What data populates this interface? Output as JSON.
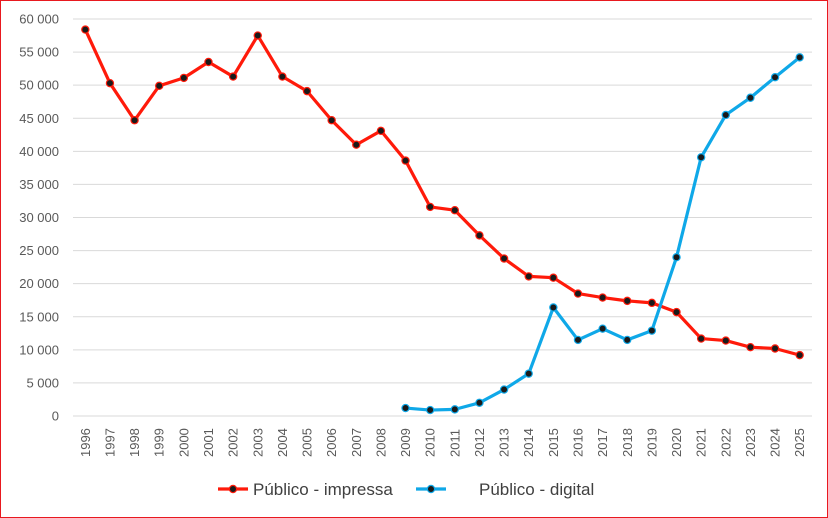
{
  "chart_data": {
    "type": "line",
    "title": "",
    "xlabel": "",
    "ylabel": "",
    "ylim": [
      0,
      60000
    ],
    "yticks": [
      0,
      5000,
      10000,
      15000,
      20000,
      25000,
      30000,
      35000,
      40000,
      45000,
      50000,
      55000,
      60000
    ],
    "ytick_labels": [
      "0",
      "5 000",
      "10 000",
      "15 000",
      "20 000",
      "25 000",
      "30 000",
      "35 000",
      "40 000",
      "45 000",
      "50 000",
      "55 000",
      "60 000"
    ],
    "grid": "horizontal",
    "legend_position": "bottom",
    "categories": [
      "1996",
      "1997",
      "1998",
      "1999",
      "2000",
      "2001",
      "2002",
      "2003",
      "2004",
      "2005",
      "2006",
      "2007",
      "2008",
      "2009",
      "2010",
      "2011",
      "2012",
      "2013",
      "2014",
      "2015",
      "2016",
      "2017",
      "2018",
      "2019",
      "2020",
      "2021",
      "2022",
      "2023",
      "2024",
      "2025"
    ],
    "series": [
      {
        "name": "Público - impressa",
        "color": "#ff1a0a",
        "values": [
          58400,
          50300,
          44700,
          49900,
          51100,
          53500,
          51300,
          57500,
          51300,
          49100,
          44700,
          41000,
          43100,
          38600,
          31600,
          31100,
          27300,
          23800,
          21100,
          20900,
          18500,
          17900,
          17400,
          17100,
          15700,
          11700,
          11400,
          10400,
          10200,
          9200
        ]
      },
      {
        "name": "Público - digital",
        "color": "#0fa8e8",
        "values": [
          null,
          null,
          null,
          null,
          null,
          null,
          null,
          null,
          null,
          null,
          null,
          null,
          null,
          1200,
          900,
          1000,
          2000,
          4000,
          6400,
          16400,
          11500,
          13200,
          11500,
          12900,
          24000,
          39100,
          45500,
          48100,
          51200,
          54200
        ]
      }
    ]
  }
}
